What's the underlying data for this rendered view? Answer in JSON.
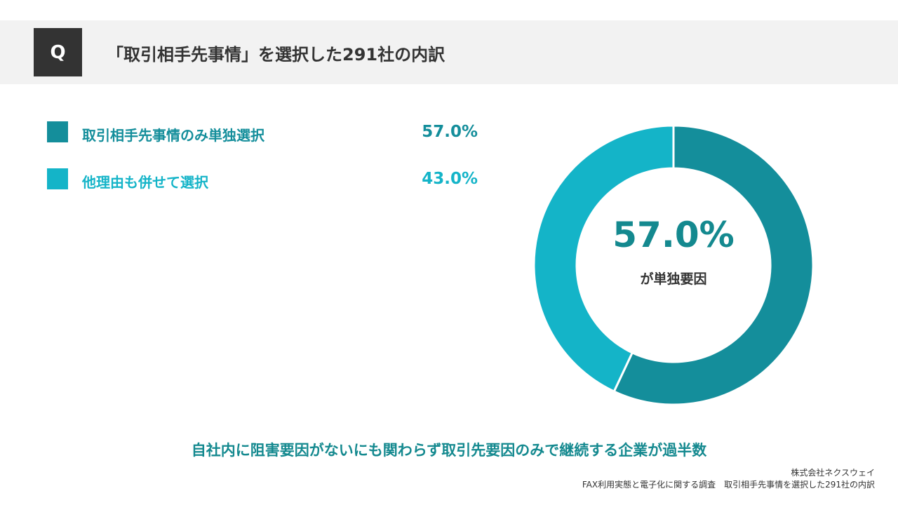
{
  "header": {
    "badge": "Q",
    "title": "「取引相手先事情」を選択した291社の内訳"
  },
  "colors": {
    "primary": "#148e9b",
    "secondary": "#14b4c8",
    "text": "#333333",
    "header_bg": "#f2f2f2",
    "badge_bg": "#333333"
  },
  "chart_data": {
    "type": "pie",
    "donut": true,
    "categories": [
      "取引相手先事情のみ単独選択",
      "他理由も併せて選択"
    ],
    "values": [
      57.0,
      43.0
    ],
    "value_labels": [
      "57.0%",
      "43.0%"
    ],
    "unit": "%",
    "legend_position": "left",
    "center_value": "57.0%",
    "center_caption": "が単独要因"
  },
  "conclusion": "自社内に阻害要因がないにも関わらず取引先要因のみで継続する企業が過半数",
  "footer": {
    "company": "株式会社ネクスウェイ",
    "source": "FAX利用実態と電子化に関する調査　取引相手先事情を選択した291社の内訳"
  }
}
